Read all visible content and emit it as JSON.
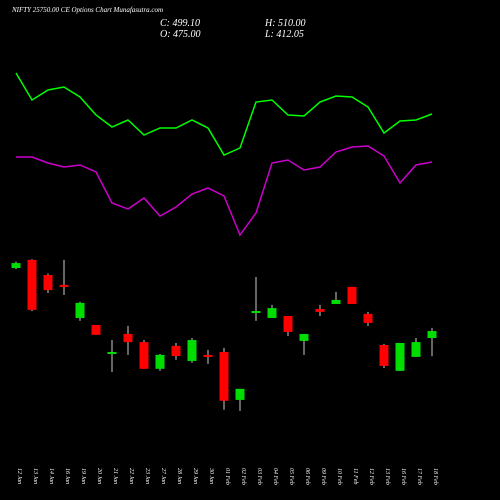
{
  "chart_data": {
    "type": "candlestick",
    "title": "NIFTY 25750.00  CE Options Chart Munafasutra.com",
    "header": {
      "close": "C: 499.10",
      "open": "O: 475.00",
      "high": "H: 510.00",
      "low": "L: 412.05"
    },
    "categories": [
      "12 Jan",
      "13 Jan",
      "14 Jan",
      "16 Jan",
      "19 Jan",
      "20 Jan",
      "21 Jan",
      "22 Jan",
      "23 Jan",
      "27 Jan",
      "28 Jan",
      "29 Jan",
      "30 Jan",
      "01 Feb",
      "02 Feb",
      "03 Feb",
      "04 Feb",
      "05 Feb",
      "06 Feb",
      "09 Feb",
      "10 Feb",
      "11 Feb",
      "12 Feb",
      "13 Feb",
      "16 Feb",
      "17 Feb",
      "18 Feb"
    ],
    "open": [
      716,
      744,
      692,
      658,
      544,
      520,
      420,
      489,
      461,
      369,
      448,
      396,
      417,
      427,
      262,
      561,
      544,
      551,
      465,
      575,
      592,
      651,
      558,
      451,
      362,
      410,
      475
    ],
    "high": [
      738,
      746,
      697,
      744,
      600,
      520,
      468,
      517,
      468,
      420,
      458,
      475,
      434,
      441,
      300,
      685,
      589,
      551,
      489,
      589,
      634,
      651,
      565,
      455,
      458,
      475,
      510
    ],
    "low": [
      712,
      568,
      630,
      623,
      534,
      486,
      358,
      417,
      369,
      362,
      400,
      390,
      386,
      228,
      224,
      534,
      544,
      482,
      417,
      551,
      592,
      592,
      517,
      372,
      362,
      410,
      412.05
    ],
    "close": [
      733,
      572,
      640,
      655,
      596,
      486,
      427,
      461,
      369,
      417,
      413,
      468,
      410,
      259,
      300,
      568,
      578,
      496,
      489,
      565,
      606,
      592,
      527,
      379,
      458,
      461,
      499.1
    ],
    "up_color": "#00dd00",
    "down_color": "#ff0000",
    "ylim": [
      210,
      778
    ],
    "indicators": {
      "ylim": [
        0,
        250
      ],
      "series": [
        {
          "color": "#00ff00",
          "values": [
            177,
            150,
            160,
            163,
            153,
            135,
            123,
            130,
            115,
            122,
            122,
            130,
            122,
            95,
            102,
            148,
            150,
            135,
            134,
            148,
            154,
            153,
            143,
            117,
            129,
            130,
            136
          ]
        },
        {
          "color": "#cc00cc",
          "values": [
            93,
            93,
            87,
            83,
            85,
            78,
            47,
            41,
            52,
            34,
            43,
            56,
            62,
            54,
            15,
            37,
            87,
            90,
            80,
            83,
            98,
            103,
            104,
            94,
            67,
            85,
            88
          ]
        }
      ]
    }
  }
}
